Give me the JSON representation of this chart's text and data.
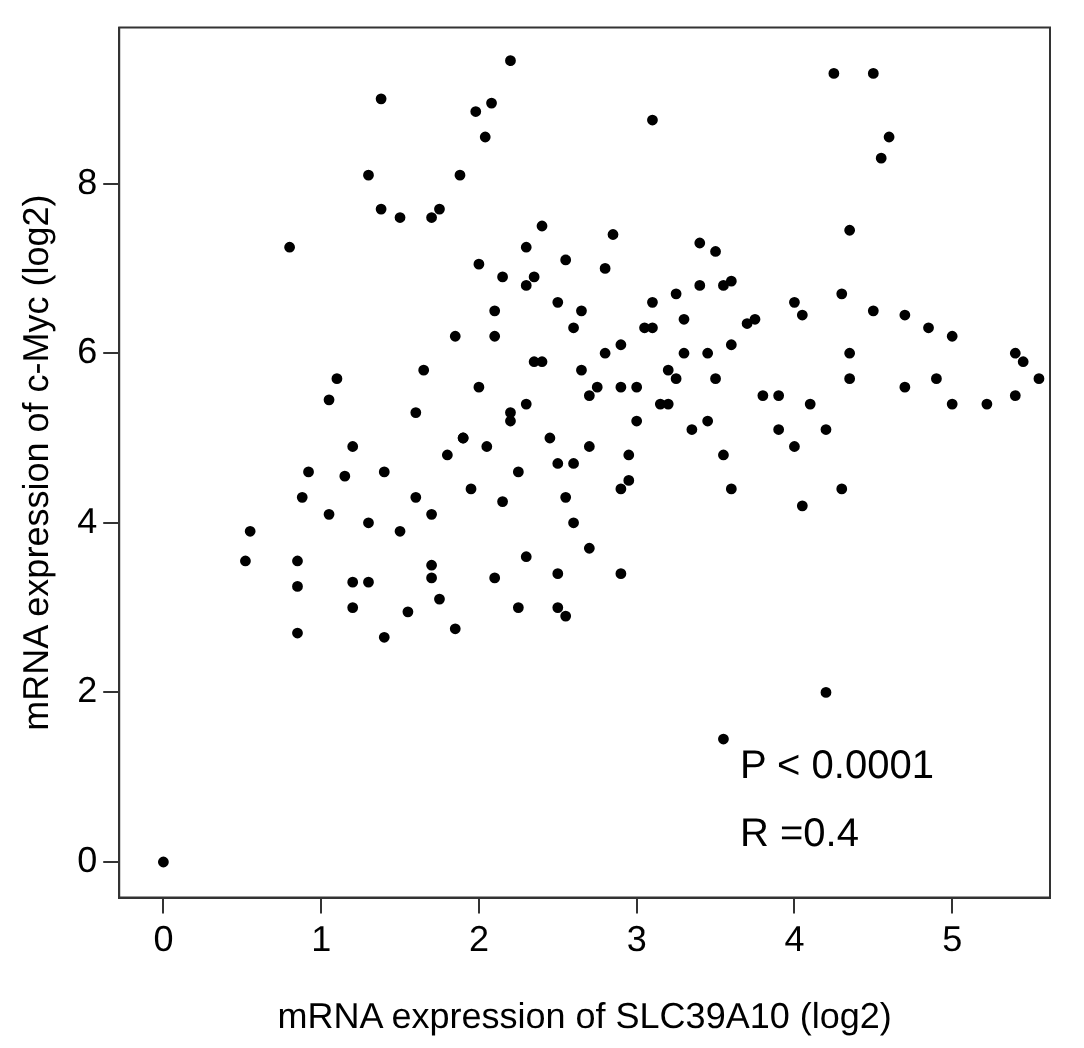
{
  "chart_data": {
    "type": "scatter",
    "xlabel": "mRNA expression of SLC39A10 (log2)",
    "ylabel": "mRNA expression of c-Myc (log2)",
    "xlim": [
      -0.28,
      5.62
    ],
    "ylim": [
      -0.42,
      9.84
    ],
    "xticks": [
      0,
      1,
      2,
      3,
      4,
      5
    ],
    "yticks": [
      0,
      2,
      4,
      6,
      8
    ],
    "grid": false,
    "legend": false,
    "marker": "circle",
    "annotations": [
      "P < 0.0001",
      "R =0.4"
    ],
    "series": [
      {
        "color": "#000000",
        "x": [
          0,
          0.8,
          0.52,
          0.55,
          0.85,
          0.85,
          0.85,
          0.88,
          0.92,
          1.05,
          1.1,
          1.2,
          1.4,
          1.38,
          1.3,
          1.38,
          2.2,
          1.98,
          2.08,
          2.04,
          1.88,
          1.75,
          1.7,
          2.3,
          2.0,
          3.1,
          4.25,
          4.5,
          4.6,
          4.55,
          4.35,
          3.5,
          3.6,
          4.0,
          4.05,
          4.3,
          4.5,
          4.7,
          4.85,
          5.0,
          4.9,
          5.0,
          5.4,
          5.45,
          5.4,
          5.55,
          5.22,
          4.7,
          4.35,
          4.1,
          3.9,
          4.2,
          4.0,
          4.3,
          4.05,
          3.6,
          3.55,
          4.2,
          3.55,
          4.35,
          3.7,
          1.2,
          1.3,
          1.55,
          1.7,
          1.75,
          1.85,
          2.25,
          2.1,
          2.5,
          2.5,
          2.55,
          2.9,
          1.3,
          1.5,
          1.7,
          2.3,
          2.7,
          2.15,
          2.55,
          2.9,
          2.6,
          1.15,
          1.4,
          1.7,
          1.05,
          1.2,
          1.8,
          1.9,
          2.0,
          2.1,
          2.2,
          2.3,
          2.4,
          2.5,
          2.6,
          2.7,
          2.8,
          2.9,
          3.0,
          3.1,
          3.2,
          3.3,
          3.4,
          3.5,
          2.05,
          2.15,
          2.25,
          2.35,
          2.45,
          2.55,
          2.65,
          2.75,
          2.85,
          2.95,
          3.05,
          3.15,
          3.25,
          3.35,
          3.45,
          1.6,
          1.65,
          1.85,
          1.95,
          2.2,
          2.4,
          2.6,
          2.8,
          3.0,
          3.2,
          3.4,
          3.6,
          3.8,
          2.3,
          2.5,
          2.7,
          2.9,
          3.1,
          3.3,
          3.45,
          1.5,
          1.6,
          1.9,
          2.1,
          2.35,
          2.65,
          2.95,
          3.25,
          3.55,
          3.75,
          3.9
        ],
        "values": [
          0,
          7.25,
          3.55,
          3.9,
          2.7,
          3.25,
          3.55,
          4.3,
          4.6,
          5.45,
          5.7,
          3.0,
          2.65,
          7.7,
          8.1,
          9.0,
          9.45,
          8.85,
          8.95,
          8.55,
          8.1,
          7.7,
          7.6,
          7.25,
          7.05,
          8.75,
          9.3,
          9.3,
          8.55,
          8.3,
          7.45,
          7.2,
          6.85,
          6.6,
          6.45,
          6.7,
          6.5,
          6.45,
          6.3,
          6.2,
          5.7,
          5.4,
          5.5,
          5.9,
          6.0,
          5.7,
          5.4,
          5.6,
          5.7,
          5.4,
          5.1,
          5.1,
          4.9,
          4.4,
          4.2,
          4.4,
          4.8,
          2.0,
          1.45,
          6.0,
          6.35,
          3.3,
          3.3,
          2.95,
          3.35,
          3.1,
          2.75,
          3.0,
          3.35,
          3.0,
          3.4,
          2.9,
          3.4,
          4.0,
          3.9,
          3.5,
          3.6,
          3.7,
          4.25,
          4.3,
          4.4,
          4.0,
          4.55,
          4.6,
          4.1,
          4.1,
          4.9,
          4.8,
          5.0,
          5.6,
          6.2,
          5.3,
          6.8,
          5.9,
          4.7,
          6.3,
          5.5,
          7.0,
          6.1,
          5.2,
          6.6,
          5.8,
          6.4,
          7.3,
          5.7,
          4.9,
          6.9,
          4.6,
          5.9,
          5.0,
          7.1,
          6.5,
          5.6,
          7.4,
          4.8,
          6.3,
          5.4,
          6.7,
          5.1,
          6.0,
          5.3,
          5.8,
          6.2,
          4.4,
          5.2,
          7.5,
          4.7,
          6.0,
          5.6,
          5.4,
          6.8,
          6.1,
          5.5,
          5.4,
          6.6,
          4.9,
          5.6,
          6.3,
          6.0,
          5.2,
          7.6,
          4.3,
          5.0,
          6.5,
          6.9,
          5.8,
          4.5,
          5.7,
          6.8,
          6.4,
          5.5
        ]
      }
    ]
  }
}
